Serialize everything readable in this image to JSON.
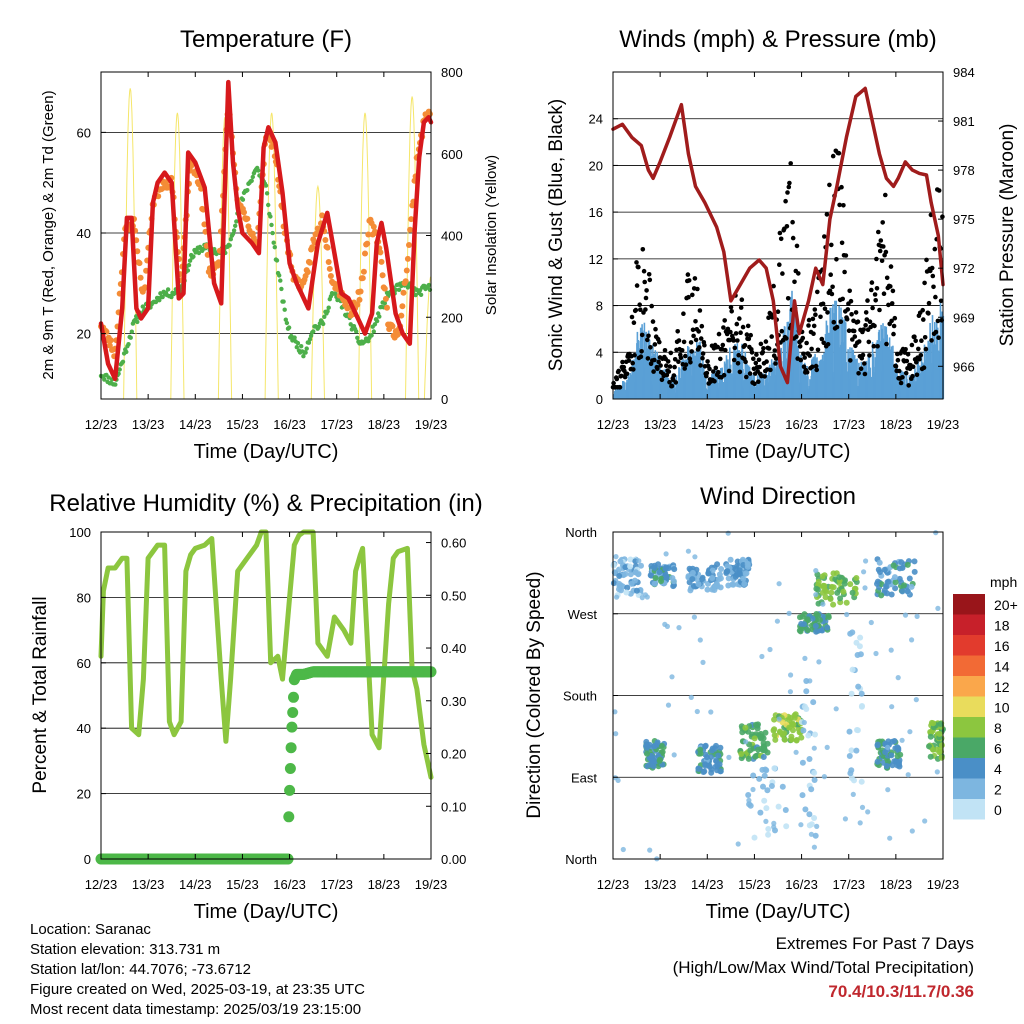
{
  "x_axis": {
    "label": "Time (Day/UTC)",
    "ticks": [
      "12/23",
      "13/23",
      "14/23",
      "15/23",
      "16/23",
      "17/23",
      "18/23",
      "19/23"
    ]
  },
  "info": {
    "location": "Location: Saranac",
    "elevation": "Station elevation: 313.731 m",
    "latlon": "Station lat/lon: 44.7076; -73.6712",
    "created": "Figure created on Wed, 2025-03-19, at 23:35 UTC",
    "recent": "Most recent data timestamp: 2025/03/19 23:15:00"
  },
  "extremes": {
    "line1": "Extremes For Past 7 Days",
    "line2": "(High/Low/Max Wind/Total Precipitation)",
    "values": "70.4/10.3/11.7/0.36"
  },
  "colors": {
    "temp_2m": "#d7191c",
    "temp_9m": "#f48c36",
    "dewpoint": "#4daf4a",
    "solar": "#f5e66a",
    "wind": "#5aa0d6",
    "gust": "#000000",
    "pressure": "#a01c1c",
    "rh": "#8cc63f",
    "precip": "#4db848"
  },
  "chart_data": [
    {
      "id": "temperature",
      "type": "line",
      "title": "Temperature (F)",
      "xlabel": "Time (Day/UTC)",
      "ylabel": "2m & 9m T (Red, Orange) & 2m Td (Green)",
      "ylabel_right": "Solar Insolation (Yellow)",
      "ylim": [
        7,
        72
      ],
      "yticks": [
        20,
        40,
        60
      ],
      "ylim_right": [
        0,
        800
      ],
      "yticks_right": [
        0,
        200,
        400,
        600,
        800
      ],
      "grid": true,
      "x_days": [
        12,
        19
      ],
      "series": [
        {
          "name": "2m T",
          "axis": "left",
          "x": [
            12.0,
            12.15,
            12.3,
            12.45,
            12.55,
            12.65,
            12.75,
            12.85,
            13.0,
            13.1,
            13.2,
            13.35,
            13.5,
            13.65,
            13.75,
            13.85,
            14.0,
            14.2,
            14.4,
            14.55,
            14.7,
            14.8,
            14.9,
            15.0,
            15.2,
            15.35,
            15.45,
            15.55,
            15.7,
            15.85,
            16.0,
            16.15,
            16.25,
            16.4,
            16.6,
            16.8,
            16.95,
            17.1,
            17.25,
            17.4,
            17.6,
            17.75,
            17.85,
            17.95,
            18.05,
            18.25,
            18.4,
            18.55,
            18.65,
            18.75,
            18.85,
            18.95,
            19.0
          ],
          "values": [
            22,
            14,
            11,
            25,
            43,
            43,
            25,
            23,
            25,
            46,
            50,
            52,
            50,
            27,
            28,
            56,
            54,
            49,
            30,
            26,
            70,
            54,
            45,
            40,
            38,
            36,
            57,
            61,
            58,
            48,
            34,
            30,
            28,
            25,
            38,
            44,
            36,
            28,
            27,
            24,
            20,
            24,
            38,
            42,
            37,
            24,
            20,
            18,
            40,
            55,
            62,
            63,
            62
          ]
        },
        {
          "name": "9m T",
          "axis": "left",
          "x": [
            12.0,
            12.3,
            12.5,
            12.7,
            12.9,
            13.1,
            13.3,
            13.5,
            13.7,
            13.9,
            14.1,
            14.3,
            14.5,
            14.7,
            14.9,
            15.1,
            15.3,
            15.5,
            15.7,
            15.9,
            16.1,
            16.3,
            16.5,
            16.7,
            16.9,
            17.1,
            17.3,
            17.5,
            17.7,
            17.9,
            18.1,
            18.3,
            18.5,
            18.7,
            18.9,
            19.0
          ],
          "values": [
            22,
            16,
            40,
            42,
            27,
            46,
            50,
            50,
            30,
            54,
            50,
            32,
            34,
            66,
            46,
            42,
            37,
            60,
            56,
            40,
            31,
            29,
            38,
            43,
            31,
            28,
            24,
            28,
            42,
            38,
            22,
            19,
            34,
            55,
            64,
            63
          ]
        },
        {
          "name": "2m Td",
          "axis": "left",
          "x": [
            12.0,
            12.3,
            12.5,
            12.7,
            12.9,
            13.1,
            13.3,
            13.5,
            13.7,
            13.9,
            14.1,
            14.3,
            14.5,
            14.7,
            14.9,
            15.1,
            15.3,
            15.5,
            15.7,
            15.9,
            16.0,
            16.15,
            16.3,
            16.5,
            16.7,
            16.9,
            17.1,
            17.3,
            17.5,
            17.7,
            17.9,
            18.1,
            18.3,
            18.5,
            18.7,
            18.9,
            19.0
          ],
          "values": [
            12,
            10,
            16,
            22,
            25,
            26,
            28,
            28,
            29,
            35,
            37,
            37,
            36,
            37,
            44,
            49,
            53,
            49,
            36,
            24,
            20,
            18,
            16,
            21,
            22,
            28,
            26,
            22,
            18,
            19,
            24,
            28,
            29,
            30,
            28,
            29,
            29
          ]
        },
        {
          "name": "Solar Insolation",
          "axis": "right",
          "peaks_x": [
            12.62,
            13.62,
            14.63,
            15.62,
            16.6,
            17.6,
            18.6,
            19.0
          ],
          "peaks": [
            760,
            700,
            690,
            700,
            520,
            700,
            740,
            300
          ],
          "half_width": 0.14
        }
      ]
    },
    {
      "id": "winds",
      "type": "scatter",
      "title": "Winds (mph) & Pressure (mb)",
      "xlabel": "Time (Day/UTC)",
      "ylabel": "Sonic Wind & Gust (Blue, Black)",
      "ylabel_right": "Station Pressure (Maroon)",
      "ylim": [
        0,
        28
      ],
      "yticks": [
        0,
        4,
        8,
        12,
        16,
        20,
        24
      ],
      "ylim_right": [
        964,
        984
      ],
      "yticks_right": [
        966,
        969,
        972,
        975,
        978,
        981,
        984
      ],
      "grid": true,
      "x_days": [
        12,
        19
      ],
      "series": [
        {
          "name": "Wind envelope",
          "axis": "left",
          "x": [
            12.0,
            12.3,
            12.5,
            12.7,
            13.0,
            13.3,
            13.6,
            13.8,
            14.0,
            14.3,
            14.6,
            14.8,
            15.0,
            15.3,
            15.6,
            15.8,
            16.0,
            16.3,
            16.6,
            16.8,
            17.0,
            17.3,
            17.6,
            17.8,
            18.0,
            18.3,
            18.6,
            18.8,
            19.0
          ],
          "values": [
            1,
            2,
            6,
            7,
            3,
            2,
            5,
            6,
            2,
            3,
            6,
            4,
            2,
            3,
            6,
            10,
            3,
            4,
            8,
            9,
            5,
            3,
            6,
            7,
            3,
            2,
            5,
            8,
            9
          ]
        },
        {
          "name": "Gust envelope",
          "axis": "left",
          "x": [
            12.0,
            12.3,
            12.5,
            12.7,
            13.0,
            13.3,
            13.6,
            13.8,
            14.0,
            14.3,
            14.6,
            14.8,
            15.0,
            15.3,
            15.6,
            15.8,
            16.0,
            16.3,
            16.6,
            16.8,
            17.0,
            17.3,
            17.6,
            17.8,
            18.0,
            18.3,
            18.6,
            18.8,
            19.0
          ],
          "values": [
            2,
            4,
            12,
            14,
            5,
            4,
            12,
            10,
            4,
            6,
            10,
            8,
            4,
            7,
            16,
            22,
            6,
            8,
            20,
            24,
            10,
            6,
            14,
            18,
            6,
            4,
            10,
            18,
            20
          ]
        },
        {
          "name": "Station Pressure",
          "axis": "right",
          "x": [
            12.0,
            12.2,
            12.4,
            12.6,
            12.75,
            12.85,
            13.0,
            13.2,
            13.45,
            13.6,
            13.75,
            13.95,
            14.2,
            14.35,
            14.5,
            14.7,
            14.9,
            15.1,
            15.25,
            15.4,
            15.55,
            15.7,
            15.85,
            15.95,
            16.05,
            16.15,
            16.3,
            16.45,
            16.6,
            16.75,
            16.95,
            17.15,
            17.35,
            17.5,
            17.65,
            17.8,
            17.95,
            18.05,
            18.2,
            18.35,
            18.5,
            18.65,
            18.75,
            18.9,
            19.0
          ],
          "values": [
            980.5,
            980.8,
            980,
            979.5,
            978,
            977.5,
            978.5,
            980,
            982,
            979,
            977,
            976,
            974.5,
            973,
            970,
            971,
            972,
            972.5,
            972,
            970,
            966,
            965,
            970,
            968,
            969,
            970,
            972,
            971,
            975,
            977,
            980,
            982.5,
            983,
            981,
            979,
            977.5,
            977,
            977.5,
            978.5,
            978,
            977.8,
            977.7,
            976,
            974,
            971
          ]
        }
      ]
    },
    {
      "id": "humidity",
      "type": "line",
      "title": "Relative Humidity (%) & Precipitation (in)",
      "xlabel": "Time (Day/UTC)",
      "ylabel": "Percent & Total Rainfall",
      "ylim": [
        0,
        100
      ],
      "yticks": [
        0,
        20,
        40,
        60,
        80,
        100
      ],
      "ylim_right": [
        0,
        0.62
      ],
      "yticks_right": [
        0.0,
        0.1,
        0.2,
        0.3,
        0.4,
        0.5,
        0.6
      ],
      "ytick_labels_right": [
        "0.00",
        "0.10",
        "0.20",
        "0.30",
        "0.40",
        "0.50",
        "0.60"
      ],
      "grid": true,
      "x_days": [
        12,
        19
      ],
      "series": [
        {
          "name": "Relative Humidity",
          "axis": "left",
          "x": [
            12.0,
            12.05,
            12.15,
            12.3,
            12.45,
            12.55,
            12.65,
            12.8,
            12.9,
            13.0,
            13.1,
            13.2,
            13.35,
            13.45,
            13.55,
            13.7,
            13.8,
            13.9,
            14.0,
            14.2,
            14.35,
            14.55,
            14.65,
            14.75,
            14.9,
            15.1,
            15.3,
            15.4,
            15.5,
            15.6,
            15.75,
            15.85,
            16.0,
            16.1,
            16.2,
            16.3,
            16.5,
            16.6,
            16.8,
            16.95,
            17.15,
            17.3,
            17.4,
            17.5,
            17.55,
            17.75,
            17.9,
            18.1,
            18.2,
            18.3,
            18.5,
            18.6,
            18.7,
            18.85,
            19.0
          ],
          "values": [
            62,
            82,
            89,
            89,
            92,
            92,
            40,
            38,
            55,
            92,
            94,
            96,
            96,
            42,
            38,
            42,
            88,
            93,
            95,
            96,
            98,
            55,
            36,
            55,
            88,
            92,
            96,
            100,
            100,
            60,
            62,
            55,
            80,
            96,
            99,
            100,
            100,
            66,
            62,
            74,
            70,
            66,
            88,
            93,
            95,
            38,
            34,
            78,
            92,
            94,
            95,
            58,
            52,
            35,
            25
          ]
        },
        {
          "name": "Total Precipitation",
          "axis": "right",
          "x": [
            12.0,
            15.97,
            15.98,
            16.0,
            16.02,
            16.05,
            16.08,
            16.1,
            16.15,
            16.3,
            16.5,
            17.0,
            18.0,
            19.0
          ],
          "values": [
            0,
            0,
            0.07,
            0.13,
            0.18,
            0.25,
            0.3,
            0.34,
            0.35,
            0.35,
            0.355,
            0.355,
            0.355,
            0.355
          ]
        }
      ]
    },
    {
      "id": "direction",
      "type": "scatter",
      "title": "Wind Direction",
      "xlabel": "Time (Day/UTC)",
      "ylabel": "Direction (Colored By Speed)",
      "yticks_deg": [
        0,
        90,
        180,
        270,
        360
      ],
      "ytick_labels": [
        "North",
        "East",
        "South",
        "West",
        "North"
      ],
      "grid": true,
      "x_days": [
        12,
        19
      ],
      "legend": {
        "title": "mph",
        "position": "right",
        "labels": [
          "20+",
          "18",
          "16",
          "14",
          "12",
          "10",
          "8",
          "6",
          "4",
          "2",
          "0"
        ],
        "colors": [
          "#99151a",
          "#c7202a",
          "#e23b2d",
          "#f26a35",
          "#faa74b",
          "#e9dc5c",
          "#8cc63f",
          "#4aa867",
          "#4a8fc7",
          "#7db6e0",
          "#c1e3f5"
        ]
      },
      "clusters": [
        {
          "x": [
            12.0,
            12.6
          ],
          "dir": [
            290,
            330
          ],
          "speed": 2
        },
        {
          "x": [
            12.8,
            13.3
          ],
          "dir": [
            300,
            325
          ],
          "speed": 4
        },
        {
          "x": [
            13.6,
            14.3
          ],
          "dir": [
            295,
            325
          ],
          "speed": 3
        },
        {
          "x": [
            14.4,
            14.9
          ],
          "dir": [
            300,
            330
          ],
          "speed": 3
        },
        {
          "x": [
            15.9,
            16.6
          ],
          "dir": [
            250,
            270
          ],
          "speed": 5
        },
        {
          "x": [
            16.3,
            17.2
          ],
          "dir": [
            280,
            315
          ],
          "speed": 7
        },
        {
          "x": [
            17.6,
            18.4
          ],
          "dir": [
            290,
            330
          ],
          "speed": 4
        },
        {
          "x": [
            12.7,
            13.1
          ],
          "dir": [
            100,
            130
          ],
          "speed": 5
        },
        {
          "x": [
            13.8,
            14.3
          ],
          "dir": [
            95,
            125
          ],
          "speed": 4
        },
        {
          "x": [
            14.7,
            15.3
          ],
          "dir": [
            110,
            150
          ],
          "speed": 6
        },
        {
          "x": [
            15.4,
            16.0
          ],
          "dir": [
            130,
            160
          ],
          "speed": 8
        },
        {
          "x": [
            17.6,
            18.1
          ],
          "dir": [
            100,
            130
          ],
          "speed": 5
        },
        {
          "x": [
            18.7,
            19.0
          ],
          "dir": [
            110,
            150
          ],
          "speed": 7
        },
        {
          "x": [
            14.8,
            15.7
          ],
          "dir": [
            20,
            100
          ],
          "speed": 1
        },
        {
          "x": [
            16.0,
            16.3
          ],
          "dir": [
            20,
            200
          ],
          "speed": 1
        },
        {
          "x": [
            17.0,
            17.3
          ],
          "dir": [
            80,
            250
          ],
          "speed": 1
        }
      ]
    }
  ]
}
